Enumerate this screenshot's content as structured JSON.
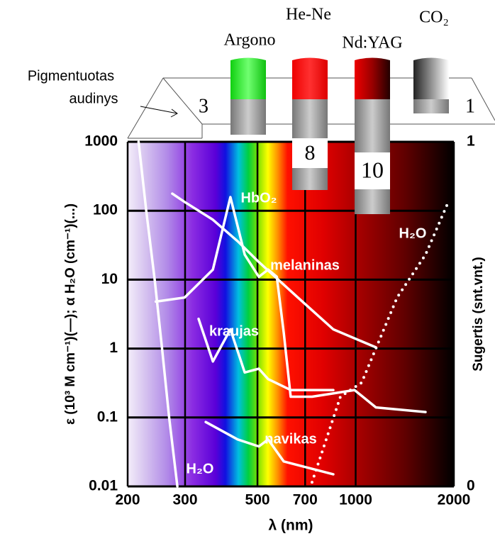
{
  "chart_data": {
    "type": "line",
    "x_label": "λ (nm)",
    "y_label": "ε (10³ M cm⁻¹)(—); α H₂O (cm⁻¹)(...)",
    "y2_label": "Sugertis (snt.vnt.)",
    "log_x": true,
    "log_y": true,
    "grid": true,
    "xlim": [
      200,
      2000
    ],
    "xticks": [
      200,
      300,
      500,
      700,
      1000,
      2000
    ],
    "ylim": [
      0.01,
      1000
    ],
    "yticks": [
      1000,
      100,
      10,
      1,
      0.1,
      0.01
    ],
    "y2lim": [
      0,
      1
    ],
    "y2ticks": [
      0,
      1
    ],
    "series": [
      {
        "name": "H₂O",
        "color": "#ffffff",
        "style": "solid",
        "x": [
          216,
          228,
          242,
          255,
          268,
          284
        ],
        "values": [
          1000,
          100,
          10,
          1,
          0.1,
          0.01
        ]
      },
      {
        "name": "melaninas",
        "color": "#ffffff",
        "style": "solid",
        "x": [
          274,
          299,
          365,
          435,
          505,
          665,
          854,
          1154
        ],
        "values": [
          177,
          134,
          74,
          36,
          18,
          5.5,
          1.9,
          1.04
        ]
      },
      {
        "name": "HbO₂",
        "color": "#ffffff",
        "style": "solid",
        "x": [
          244,
          299,
          365,
          413,
          457,
          505,
          539,
          573,
          602,
          632,
          735,
          992,
          1154,
          1637
        ],
        "values": [
          4.8,
          5.5,
          14,
          158,
          23,
          11,
          14,
          11,
          1.7,
          0.2,
          0.2,
          0.25,
          0.14,
          0.12
        ]
      },
      {
        "name": "kraujas",
        "color": "#ffffff",
        "style": "solid",
        "x": [
          330,
          365,
          413,
          457,
          505,
          539,
          632,
          854
        ],
        "values": [
          2.7,
          0.65,
          1.9,
          0.45,
          0.51,
          0.36,
          0.25,
          0.25
        ]
      },
      {
        "name": "navikas",
        "color": "#ffffff",
        "style": "solid",
        "x": [
          347,
          435,
          505,
          539,
          602,
          854
        ],
        "values": [
          0.086,
          0.048,
          0.038,
          0.048,
          0.023,
          0.015
        ]
      },
      {
        "name": "H₂O",
        "color": "#ffffff",
        "style": "dotted",
        "x": [
          735,
          898,
          1043,
          1340,
          1637,
          1902
        ],
        "values": [
          0.0115,
          0.2,
          0.32,
          5.5,
          23,
          119
        ]
      }
    ],
    "lasers": [
      {
        "name": "Argono",
        "depth": "3"
      },
      {
        "name": "He-Ne",
        "depth": "8"
      },
      {
        "name": "Nd:YAG",
        "depth": "10"
      },
      {
        "name": "CO₂",
        "depth": "1"
      }
    ],
    "tissue_label": [
      "Pigmentuotas",
      "audinys"
    ]
  }
}
